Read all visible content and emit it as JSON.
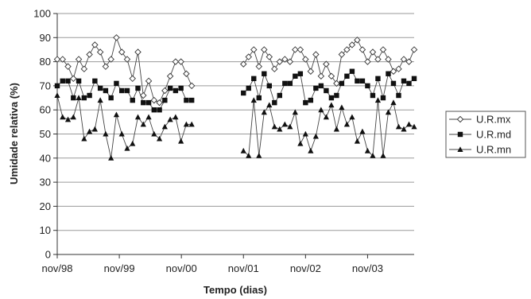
{
  "chart_data": {
    "type": "line",
    "xlabel": "Tempo (dias)",
    "ylabel": "Umidade relativa (%)",
    "ylim": [
      0,
      100
    ],
    "yticks": [
      0,
      10,
      20,
      30,
      40,
      50,
      60,
      70,
      80,
      90,
      100
    ],
    "x_tick_labels": [
      "nov/98",
      "nov/99",
      "nov/00",
      "nov/01",
      "nov/02",
      "nov/03"
    ],
    "x_tick_months": [
      0,
      12,
      24,
      36,
      48,
      60
    ],
    "grid": true,
    "legend_position": "right",
    "segments": [
      {
        "start": 0,
        "end": 26
      },
      {
        "start": 36,
        "end": 69
      }
    ],
    "series": [
      {
        "name": "U.R.mx",
        "marker": "diamond",
        "values": [
          [
            81,
            81,
            78,
            73,
            81,
            77,
            83,
            87,
            84,
            78,
            81,
            90,
            84,
            81,
            73,
            84,
            66,
            72,
            64,
            63,
            68,
            74,
            80,
            80,
            75,
            70
          ],
          [
            79,
            82,
            85,
            78,
            85,
            82,
            77,
            80,
            81,
            80,
            85,
            85,
            81,
            76,
            83,
            74,
            79,
            74,
            71,
            83,
            85,
            87,
            89,
            85,
            80,
            84,
            81,
            85,
            81,
            76,
            77,
            81,
            80,
            85
          ]
        ]
      },
      {
        "name": "U.R.md",
        "marker": "square",
        "values": [
          [
            70,
            72,
            72,
            65,
            72,
            65,
            66,
            72,
            69,
            68,
            65,
            71,
            68,
            68,
            64,
            69,
            63,
            63,
            60,
            60,
            64,
            69,
            68,
            69,
            64,
            64
          ],
          [
            67,
            69,
            73,
            65,
            75,
            70,
            63,
            66,
            71,
            71,
            74,
            75,
            63,
            64,
            69,
            70,
            68,
            65,
            66,
            71,
            74,
            76,
            72,
            72,
            70,
            66,
            73,
            65,
            75,
            71,
            66,
            72,
            71,
            73
          ]
        ]
      },
      {
        "name": "U.R.mn",
        "marker": "triangle",
        "values": [
          [
            66,
            57,
            56,
            57,
            65,
            48,
            51,
            52,
            64,
            50,
            40,
            58,
            50,
            44,
            46,
            57,
            54,
            57,
            50,
            48,
            53,
            56,
            57,
            47,
            54,
            54
          ],
          [
            43,
            41,
            64,
            41,
            59,
            62,
            53,
            52,
            54,
            53,
            59,
            46,
            50,
            43,
            49,
            60,
            57,
            62,
            52,
            61,
            54,
            57,
            47,
            51,
            43,
            41,
            64,
            41,
            59,
            63,
            53,
            52,
            54,
            53
          ]
        ]
      }
    ]
  }
}
